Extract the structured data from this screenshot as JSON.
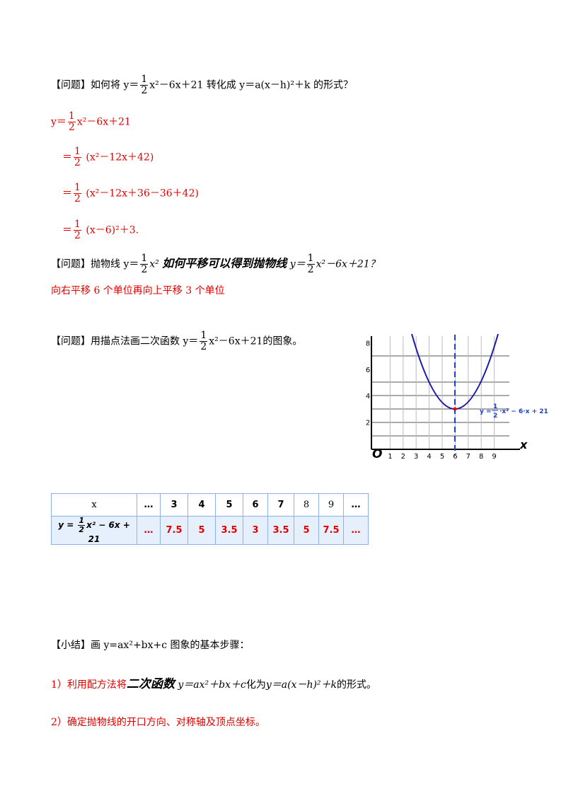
{
  "q1": {
    "label": "【问题】",
    "before": "如何将 y＝",
    "num": "1",
    "den": "2",
    "after": "x²－6x＋21 转化成 y＝a(x－h)²＋k 的形式？"
  },
  "steps": [
    {
      "prefix": "y＝",
      "num": "1",
      "den": "2",
      "after": "x²－6x＋21"
    },
    {
      "prefix": "＝",
      "num": "1",
      "den": "2",
      "after": " (x²－12x＋42)"
    },
    {
      "prefix": "＝",
      "num": "1",
      "den": "2",
      "after": " (x²－12x＋36－36＋42)"
    },
    {
      "prefix": "＝",
      "num": "1",
      "den": "2",
      "after": " (x－6)²＋3."
    }
  ],
  "q2": {
    "label": "【问题】",
    "before": "抛物线 y＝",
    "num": "1",
    "den": "2",
    "mid": "x²",
    "italic": "如何平移可以得到抛物线",
    "before2": "y＝",
    "num2": "1",
    "den2": "2",
    "after": "x²－6x＋21？"
  },
  "a2": "向右平移 6 个单位再向上平移 3 个单位",
  "q3": {
    "label": "【问题】",
    "before": "用描点法画二次函数 y＝",
    "num": "1",
    "den": "2",
    "after": "x²－6x＋21的图象。"
  },
  "graph": {
    "yticks": [
      "2",
      "4",
      "6",
      "8"
    ],
    "xticks": [
      "1",
      "2",
      "3",
      "4",
      "5",
      "6",
      "7",
      "8",
      "9"
    ],
    "origin": "O",
    "x_label": "x",
    "curve_label": {
      "before": "y =",
      "num": "1",
      "den": "2",
      "after": "·x² − 6·x + 21"
    }
  },
  "table": {
    "header": [
      "x",
      "…",
      "3",
      "4",
      "5",
      "6",
      "7",
      "8",
      "9",
      "…"
    ],
    "formula": {
      "before": "y = ",
      "num": "1",
      "den": "2",
      "after": "x² − 6x + 21"
    },
    "values": [
      "…",
      "7.5",
      "5",
      "3.5",
      "3",
      "3.5",
      "5",
      "7.5",
      "…"
    ]
  },
  "summary": {
    "label": "【小结】",
    "text": "画 y=ax²+bx+c 图象的基本步骤："
  },
  "summary_steps": [
    {
      "prefix": "1）利用配方法将",
      "italic": "二次函数",
      "formula": "y＝ax²＋bx＋c",
      "mid": "化为",
      "formula2": "y＝a(x－h)²＋k",
      "end": "的形式。"
    },
    "2）确定抛物线的开口方向、对称轴及顶点坐标。"
  ]
}
